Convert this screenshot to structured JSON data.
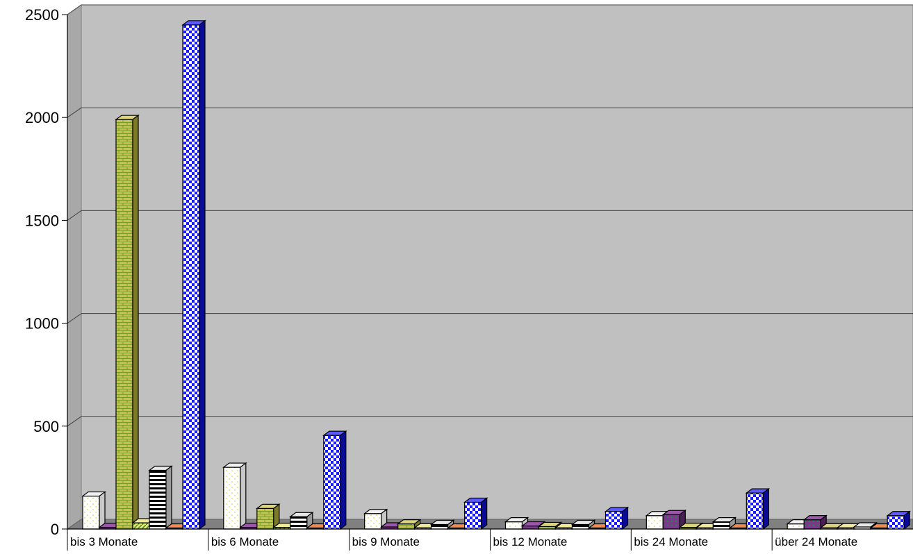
{
  "chart_data": {
    "type": "bar",
    "title": "",
    "xlabel": "",
    "ylabel": "",
    "ylim": [
      0,
      2500
    ],
    "yticks": [
      "0",
      "500",
      "1000",
      "1500",
      "2000",
      "2500"
    ],
    "ytick_values": [
      0,
      500,
      1000,
      1500,
      2000,
      2500
    ],
    "grid": true,
    "legend": "none",
    "categories": [
      "bis 3 Monate",
      "bis 6 Monate",
      "bis 9 Monate",
      "bis 12 Monate",
      "bis 24 Monate",
      "über 24 Monate"
    ],
    "series": [
      {
        "values": [
          160,
          300,
          75,
          35,
          65,
          25
        ],
        "pattern": "dots",
        "color": "#ffffff",
        "side": "#c8c8c8",
        "top": "#f0f0f0",
        "dot": "#d8d850"
      },
      {
        "values": [
          8,
          8,
          10,
          15,
          70,
          45
        ],
        "pattern": "grid",
        "color": "#7a3a8a",
        "side": "#4a1f56",
        "top": "#9b58ab",
        "dot": "#1f8a4a"
      },
      {
        "values": [
          1990,
          100,
          25,
          12,
          8,
          6
        ],
        "pattern": "brick",
        "color": "#c8c050",
        "side": "#7d7a28",
        "top": "#dcd47a",
        "dot": "#7a9a2a"
      },
      {
        "values": [
          30,
          8,
          6,
          6,
          6,
          6
        ],
        "pattern": "diagonal",
        "color": "#e8e070",
        "side": "#8a8430",
        "top": "#f0ea9a",
        "dot": "#2a8a3a"
      },
      {
        "values": [
          285,
          60,
          22,
          22,
          35,
          10
        ],
        "pattern": "hstripes",
        "color": "#ffffff",
        "side": "#9a9a9a",
        "top": "#e8e8e8",
        "dot": "#000000"
      },
      {
        "values": [
          5,
          5,
          5,
          5,
          5,
          5
        ],
        "pattern": "solid",
        "color": "#e06020",
        "side": "#903c10",
        "top": "#f08a50",
        "dot": "#e06020"
      },
      {
        "values": [
          2450,
          455,
          130,
          85,
          175,
          65
        ],
        "pattern": "checker",
        "color": "#1a1aff",
        "side": "#0a0a99",
        "top": "#5a5aff",
        "dot": "#ffffff"
      }
    ]
  }
}
